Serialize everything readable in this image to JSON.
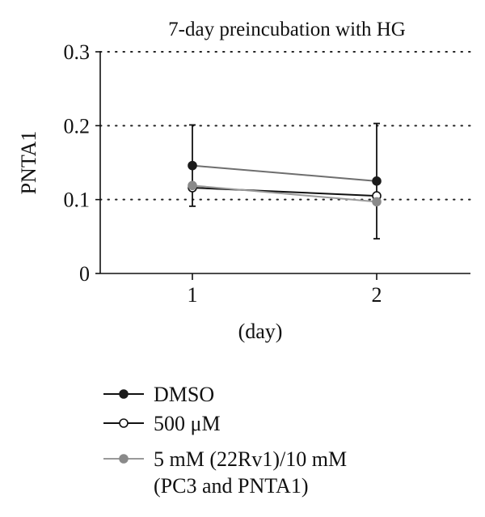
{
  "chart_data": {
    "type": "line",
    "title": "7-day preincubation with HG",
    "xlabel": "(day)",
    "ylabel": "PNTA1",
    "x": [
      1,
      2
    ],
    "x_tick_labels": [
      "1",
      "2"
    ],
    "y_tick_labels": [
      "0",
      "0.1",
      "0.2",
      "0.3"
    ],
    "ylim": [
      0,
      0.3
    ],
    "grid": "horizontal dotted",
    "legend_position": "bottom",
    "series": [
      {
        "name": "DMSO",
        "values": [
          0.146,
          0.125
        ],
        "error": [
          0.055,
          0.078
        ],
        "color": "#6e6e6e",
        "marker_fill": "#1a1a1a"
      },
      {
        "name": "500 μM",
        "values": [
          0.116,
          0.105
        ],
        "error": [
          0.0,
          0.0
        ],
        "color": "#111111",
        "marker_fill": "#ffffff"
      },
      {
        "name": "5 mM (22Rv1)/10 mM (PC3 and PNTA1)",
        "legend_lines": [
          "5 mM (22Rv1)/10 mM",
          "(PC3 and PNTA1)"
        ],
        "values": [
          0.119,
          0.097
        ],
        "error": [
          0.0,
          0.0
        ],
        "color": "#9a9a9a",
        "marker_fill": "#8a8a8a"
      }
    ]
  }
}
